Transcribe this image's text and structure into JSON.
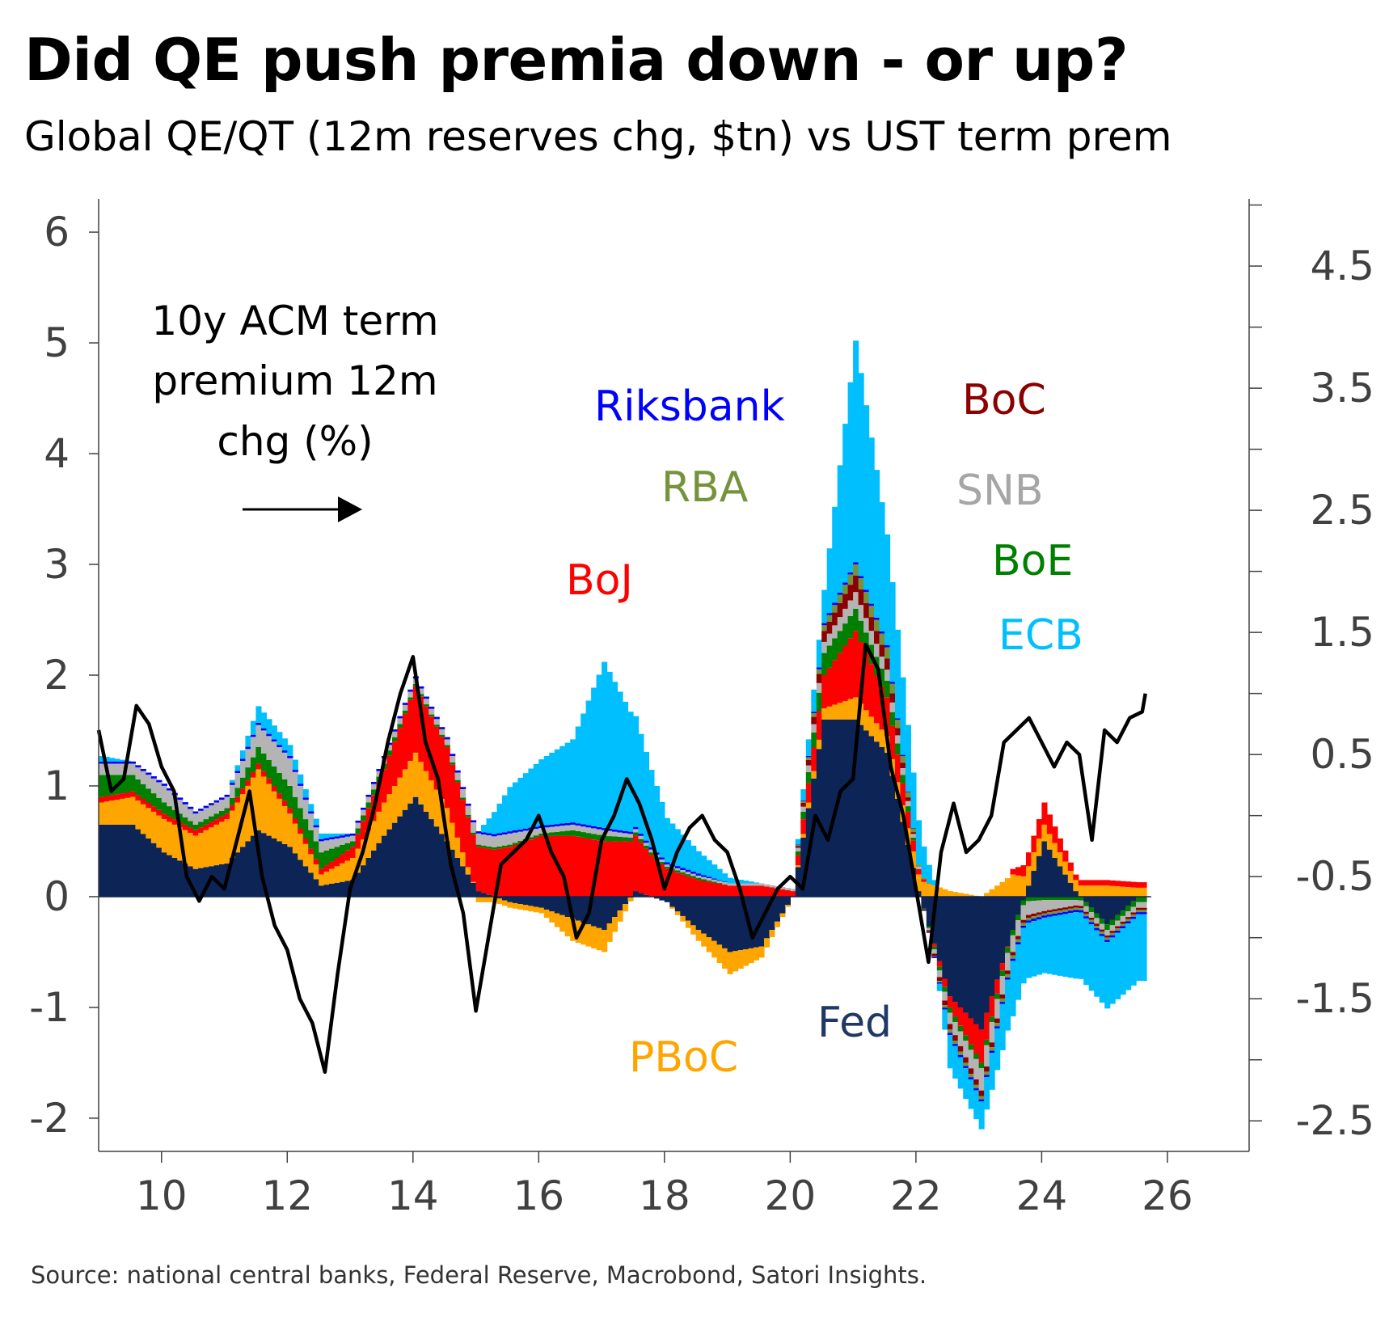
{
  "header": {
    "title": "Did QE push premia down - or up?",
    "subtitle": "Global QE/QT (12m reserves chg, $tn) vs UST term prem"
  },
  "footer": {
    "source": "Source: national central banks, Federal Reserve, Macrobond, Satori Insights."
  },
  "chart_data": {
    "type": "area",
    "title": "Did QE push premia down - or up?",
    "subtitle": "Global QE/QT (12m reserves chg, $tn) vs UST term prem",
    "x_axis": {
      "ticks": [
        "10",
        "12",
        "14",
        "16",
        "18",
        "20",
        "22",
        "24",
        "26"
      ],
      "range": [
        2009.0,
        2027.3
      ]
    },
    "y_left": {
      "ticks": [
        "6",
        "5",
        "4",
        "3",
        "2",
        "1",
        "0",
        "-1",
        "-2"
      ],
      "range": [
        -2.3,
        6.3
      ]
    },
    "y_right": {
      "ticks": [
        "4.5",
        "3.5",
        "2.5",
        "1.5",
        "0.5",
        "-0.5",
        "-1.5",
        "-2.5"
      ],
      "range": [
        -2.75,
        5.05
      ]
    },
    "annotation": {
      "lines": [
        "10y ACM term",
        "premium 12m",
        "chg (%)"
      ],
      "arrow": "points right (right axis)"
    },
    "stack_order": [
      "Fed",
      "PBoC",
      "BoJ",
      "BoE",
      "SNB",
      "BoC",
      "RBA",
      "Riksbank",
      "ECB"
    ],
    "banks": [
      {
        "name": "Fed",
        "color": "#0d2457",
        "label_color": "#1f3864"
      },
      {
        "name": "PBoC",
        "color": "#ffa500",
        "label_color": "#ffa500"
      },
      {
        "name": "BoJ",
        "color": "#ff0000",
        "label_color": "#ff0000"
      },
      {
        "name": "BoE",
        "color": "#008000",
        "label_color": "#008000"
      },
      {
        "name": "SNB",
        "color": "#b4b4b4",
        "label_color": "#a6a6a6"
      },
      {
        "name": "BoC",
        "color": "#8b0000",
        "label_color": "#8b0000"
      },
      {
        "name": "RBA",
        "color": "#76933c",
        "label_color": "#76933c"
      },
      {
        "name": "Riksbank",
        "color": "#0000ff",
        "label_color": "#0000ff"
      },
      {
        "name": "ECB",
        "color": "#00bfff",
        "label_color": "#00bfff"
      }
    ],
    "stacked_series": {
      "x": [
        2009.0,
        2009.5,
        2010.0,
        2010.5,
        2011.0,
        2011.5,
        2012.0,
        2012.5,
        2013.0,
        2013.5,
        2014.0,
        2014.5,
        2015.0,
        2015.5,
        2016.0,
        2016.5,
        2017.0,
        2017.5,
        2018.0,
        2018.5,
        2019.0,
        2019.5,
        2020.0,
        2020.5,
        2021.0,
        2021.5,
        2022.0,
        2022.5,
        2023.0,
        2023.5,
        2024.0,
        2024.5,
        2025.0,
        2025.5,
        2025.65
      ],
      "Fed": [
        0.65,
        0.65,
        0.4,
        0.25,
        0.3,
        0.6,
        0.45,
        0.1,
        0.15,
        0.55,
        0.9,
        0.5,
        0.05,
        -0.05,
        -0.1,
        -0.2,
        -0.3,
        0.05,
        -0.05,
        -0.3,
        -0.5,
        -0.45,
        0.0,
        1.6,
        1.6,
        1.3,
        0.05,
        -0.9,
        -1.2,
        -0.3,
        0.5,
        0.05,
        -0.25,
        0.0,
        0.0
      ],
      "PBoC": [
        0.2,
        0.25,
        0.3,
        0.3,
        0.4,
        0.55,
        0.3,
        0.1,
        0.2,
        0.3,
        0.4,
        0.3,
        -0.05,
        -0.05,
        -0.05,
        -0.2,
        -0.2,
        0.0,
        0.0,
        -0.1,
        -0.2,
        -0.1,
        0.0,
        0.1,
        0.2,
        0.15,
        0.15,
        0.05,
        0.0,
        0.2,
        0.15,
        0.1,
        0.1,
        0.08,
        0.08
      ],
      "BoJ": [
        0.05,
        0.05,
        0.05,
        0.05,
        0.05,
        0.05,
        0.05,
        0.05,
        0.1,
        0.3,
        0.6,
        0.55,
        0.4,
        0.45,
        0.55,
        0.55,
        0.5,
        0.5,
        0.25,
        0.15,
        0.1,
        0.1,
        0.05,
        0.3,
        0.6,
        0.35,
        0.05,
        -0.1,
        -0.3,
        0.05,
        0.2,
        0.05,
        0.05,
        0.05,
        0.05
      ],
      "BoE": [
        0.2,
        0.15,
        0.1,
        0.05,
        0.05,
        0.15,
        0.2,
        0.15,
        0.05,
        0.05,
        0.02,
        0.02,
        0.02,
        0.02,
        0.02,
        0.05,
        0.05,
        0.03,
        0.02,
        0.02,
        0.0,
        0.0,
        0.0,
        0.2,
        0.2,
        0.15,
        0.0,
        -0.05,
        -0.05,
        -0.05,
        -0.03,
        -0.03,
        -0.05,
        -0.05,
        -0.05
      ],
      "SNB": [
        0.1,
        0.1,
        0.15,
        0.1,
        0.1,
        0.2,
        0.25,
        0.1,
        0.05,
        0.05,
        0.05,
        0.05,
        0.1,
        0.1,
        0.05,
        0.05,
        0.05,
        0.03,
        0.02,
        0.02,
        0.02,
        0.02,
        0.02,
        0.1,
        0.15,
        0.1,
        0.02,
        -0.1,
        -0.2,
        -0.15,
        -0.1,
        -0.05,
        -0.05,
        -0.05,
        -0.05
      ],
      "BoC": [
        0.0,
        0.0,
        0.0,
        0.0,
        0.0,
        0.0,
        0.0,
        0.0,
        0.0,
        0.0,
        0.0,
        0.0,
        0.0,
        0.0,
        0.0,
        0.0,
        0.0,
        0.0,
        0.0,
        0.0,
        0.0,
        0.0,
        0.0,
        0.1,
        0.15,
        0.1,
        0.0,
        -0.05,
        -0.05,
        -0.03,
        -0.02,
        -0.02,
        -0.02,
        -0.02,
        -0.02
      ],
      "RBA": [
        0.0,
        0.0,
        0.0,
        0.0,
        0.0,
        0.0,
        0.0,
        0.0,
        0.0,
        0.0,
        0.0,
        0.0,
        0.0,
        0.0,
        0.0,
        0.0,
        0.0,
        0.0,
        0.0,
        0.0,
        0.0,
        0.0,
        0.0,
        0.05,
        0.1,
        0.1,
        0.02,
        -0.03,
        -0.03,
        -0.03,
        -0.02,
        -0.02,
        -0.02,
        -0.02,
        -0.02
      ],
      "Riksbank": [
        0.02,
        0.02,
        0.02,
        0.02,
        0.02,
        0.02,
        0.02,
        0.02,
        0.02,
        0.02,
        0.02,
        0.02,
        0.02,
        0.02,
        0.02,
        0.02,
        0.02,
        0.02,
        0.02,
        0.02,
        0.0,
        0.0,
        0.0,
        0.02,
        0.02,
        0.02,
        0.0,
        -0.02,
        -0.02,
        -0.02,
        -0.02,
        -0.02,
        -0.02,
        -0.02,
        -0.02
      ],
      "ECB": [
        0.05,
        0.0,
        0.0,
        0.0,
        0.0,
        0.15,
        0.1,
        0.05,
        0.0,
        0.0,
        0.0,
        0.0,
        0.0,
        0.4,
        0.6,
        0.75,
        1.5,
        1.0,
        0.4,
        0.2,
        0.05,
        0.0,
        0.0,
        0.3,
        2.0,
        1.0,
        0.4,
        -0.3,
        -0.25,
        -0.5,
        -0.5,
        -0.6,
        -0.6,
        -0.6,
        -0.6
      ]
    },
    "line_series": {
      "name": "10y ACM term premium 12m chg (%)",
      "axis": "right",
      "color": "#000000",
      "x": [
        2009.0,
        2009.2,
        2009.4,
        2009.6,
        2009.8,
        2010.0,
        2010.2,
        2010.4,
        2010.6,
        2010.8,
        2011.0,
        2011.2,
        2011.4,
        2011.6,
        2011.8,
        2012.0,
        2012.2,
        2012.4,
        2012.6,
        2012.8,
        2013.0,
        2013.2,
        2013.4,
        2013.6,
        2013.8,
        2014.0,
        2014.2,
        2014.4,
        2014.6,
        2014.8,
        2015.0,
        2015.2,
        2015.4,
        2015.6,
        2015.8,
        2016.0,
        2016.2,
        2016.4,
        2016.6,
        2016.8,
        2017.0,
        2017.2,
        2017.4,
        2017.6,
        2017.8,
        2018.0,
        2018.2,
        2018.4,
        2018.6,
        2018.8,
        2019.0,
        2019.2,
        2019.4,
        2019.6,
        2019.8,
        2020.0,
        2020.2,
        2020.4,
        2020.6,
        2020.8,
        2021.0,
        2021.2,
        2021.4,
        2021.6,
        2021.8,
        2022.0,
        2022.2,
        2022.4,
        2022.6,
        2022.8,
        2023.0,
        2023.2,
        2023.4,
        2023.6,
        2023.8,
        2024.0,
        2024.2,
        2024.4,
        2024.6,
        2024.8,
        2025.0,
        2025.2,
        2025.4,
        2025.6,
        2025.65
      ],
      "y": [
        0.7,
        0.2,
        0.3,
        0.9,
        0.75,
        0.4,
        0.2,
        -0.5,
        -0.7,
        -0.5,
        -0.6,
        -0.2,
        0.2,
        -0.5,
        -0.9,
        -1.1,
        -1.5,
        -1.7,
        -2.1,
        -1.3,
        -0.6,
        -0.3,
        0.1,
        0.6,
        1.0,
        1.3,
        0.6,
        0.3,
        -0.4,
        -0.8,
        -1.6,
        -1.0,
        -0.4,
        -0.3,
        -0.2,
        0.0,
        -0.3,
        -0.5,
        -1.0,
        -0.8,
        -0.2,
        0.0,
        0.3,
        0.1,
        -0.2,
        -0.6,
        -0.3,
        -0.1,
        0.0,
        -0.2,
        -0.3,
        -0.6,
        -1.0,
        -0.8,
        -0.6,
        -0.5,
        -0.6,
        0.0,
        -0.2,
        0.2,
        0.3,
        1.4,
        1.2,
        0.4,
        0.0,
        -0.6,
        -1.2,
        -0.3,
        0.1,
        -0.3,
        -0.2,
        0.0,
        0.6,
        0.7,
        0.8,
        0.6,
        0.4,
        0.6,
        0.5,
        -0.2,
        0.7,
        0.6,
        0.8,
        0.85,
        1.0
      ]
    },
    "bank_labels": [
      "Riksbank",
      "BoC",
      "RBA",
      "SNB",
      "BoE",
      "BoJ",
      "ECB",
      "Fed",
      "PBoC"
    ]
  }
}
